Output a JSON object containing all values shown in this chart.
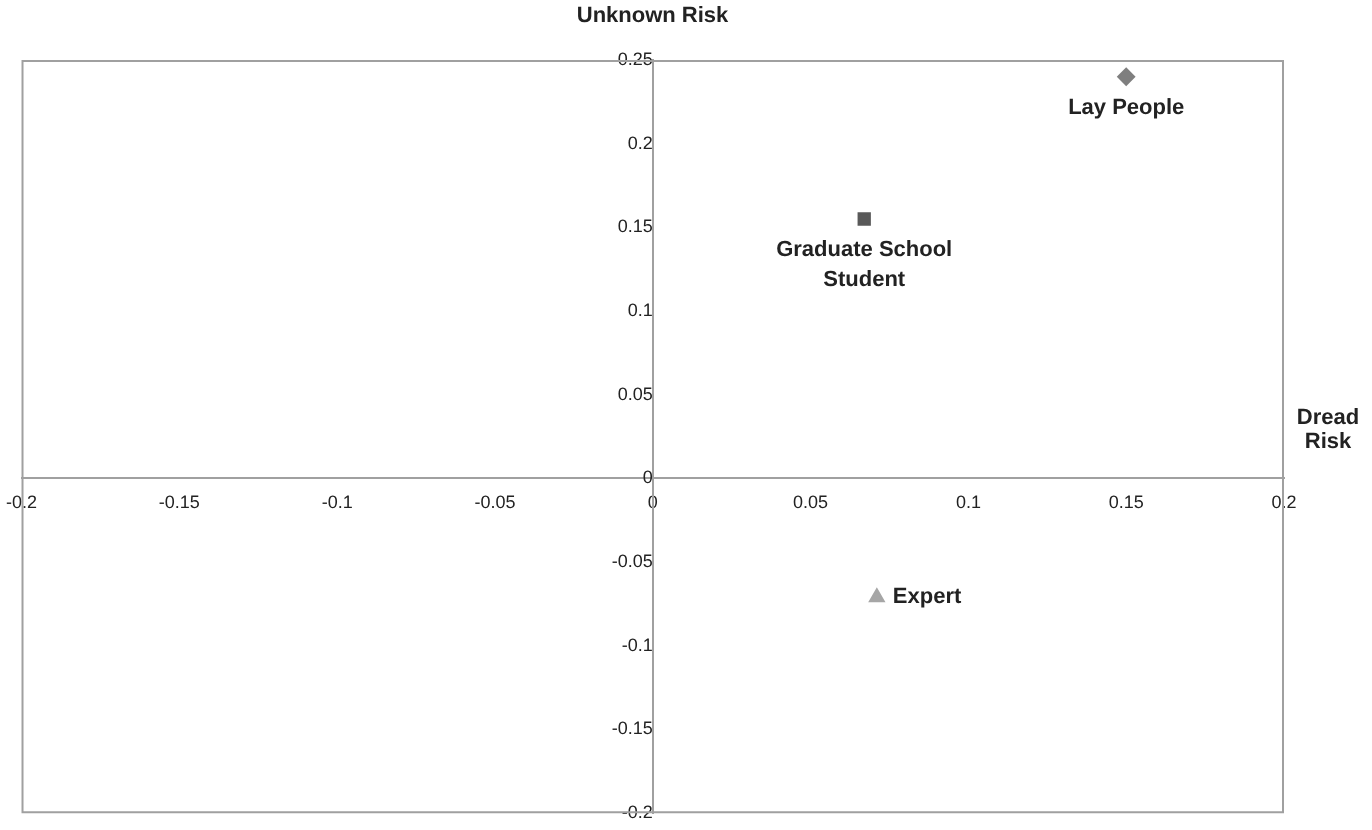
{
  "chart_data": {
    "type": "scatter",
    "xlabel": "Dread Risk",
    "ylabel": "Unknown Risk",
    "xlim": [
      -0.2,
      0.2
    ],
    "xticks": [
      -0.2,
      -0.15,
      -0.1,
      -0.05,
      0,
      0.05,
      0.1,
      0.15,
      0.2
    ],
    "ylim": [
      -0.2,
      0.25
    ],
    "yticks": [
      -0.2,
      -0.15,
      -0.1,
      -0.05,
      0,
      0.05,
      0.1,
      0.15,
      0.2,
      0.25
    ],
    "grid": false,
    "legend": false,
    "series": [
      {
        "name": "Lay People",
        "color": "#7f7f7f",
        "marker": "diamond",
        "x": [
          0.15
        ],
        "values": [
          0.24
        ]
      },
      {
        "name": "Graduate School Student",
        "color": "#595959",
        "marker": "square",
        "x": [
          0.067
        ],
        "values": [
          0.155
        ]
      },
      {
        "name": "Expert",
        "color": "#a6a6a6",
        "marker": "triangle",
        "x": [
          0.071
        ],
        "values": [
          -0.071
        ]
      }
    ]
  }
}
